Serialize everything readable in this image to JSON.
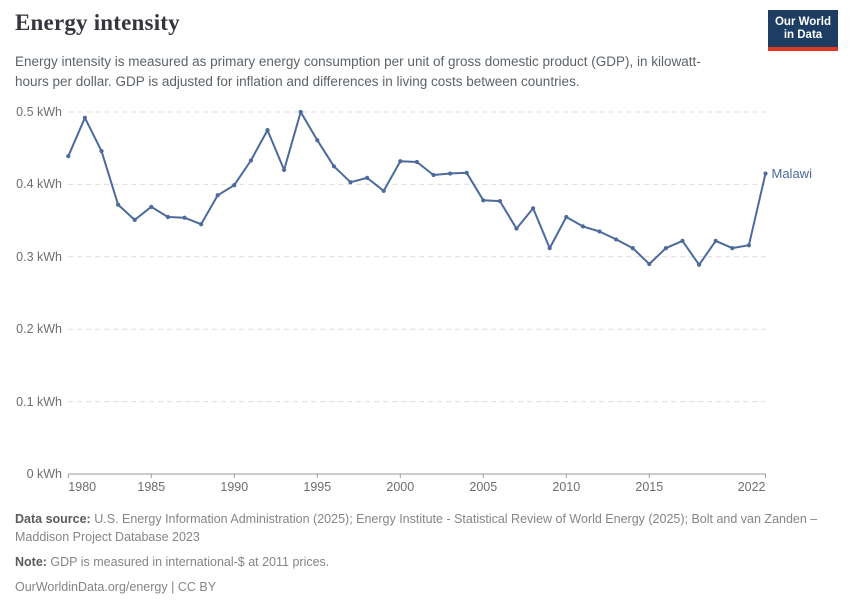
{
  "header": {
    "title": "Energy intensity",
    "subtitle": "Energy intensity is measured as primary energy consumption per unit of gross domestic product (GDP), in kilowatt-hours per dollar. GDP is adjusted for inflation and differences in living costs between countries."
  },
  "logo": {
    "line1": "Our World",
    "line2": "in Data",
    "bg_color": "#1d3d63",
    "accent_color": "#dc3822"
  },
  "chart_data": {
    "type": "line",
    "title": "Energy intensity",
    "unit": "kWh per dollar",
    "xlim": [
      1980,
      2022
    ],
    "ylim": [
      0,
      0.5
    ],
    "grid": "horizontal dashed",
    "legend_position": "end-of-line label",
    "x_ticks": [
      1980,
      1985,
      1990,
      1995,
      2000,
      2005,
      2010,
      2015,
      2022
    ],
    "y_ticks": [
      0,
      0.1,
      0.2,
      0.3,
      0.4,
      0.5
    ],
    "y_tick_labels": [
      "0 kWh",
      "0.1 kWh",
      "0.2 kWh",
      "0.3 kWh",
      "0.4 kWh",
      "0.5 kWh"
    ],
    "series": [
      {
        "name": "Malawi",
        "color": "#4c6a9c",
        "x": [
          1980,
          1981,
          1982,
          1983,
          1984,
          1985,
          1986,
          1987,
          1988,
          1989,
          1990,
          1991,
          1992,
          1993,
          1994,
          1995,
          1996,
          1997,
          1998,
          1999,
          2000,
          2001,
          2002,
          2003,
          2004,
          2005,
          2006,
          2007,
          2008,
          2009,
          2010,
          2011,
          2012,
          2013,
          2014,
          2015,
          2016,
          2017,
          2018,
          2019,
          2020,
          2021,
          2022
        ],
        "values": [
          0.439,
          0.492,
          0.446,
          0.372,
          0.351,
          0.369,
          0.355,
          0.354,
          0.345,
          0.385,
          0.399,
          0.433,
          0.475,
          0.42,
          0.5,
          0.461,
          0.425,
          0.403,
          0.409,
          0.391,
          0.432,
          0.431,
          0.413,
          0.415,
          0.416,
          0.378,
          0.377,
          0.339,
          0.367,
          0.312,
          0.355,
          0.342,
          0.335,
          0.324,
          0.312,
          0.29,
          0.312,
          0.322,
          0.289,
          0.322,
          0.312,
          0.316,
          0.415
        ]
      }
    ],
    "end_label": "Malawi"
  },
  "footer": {
    "datasource_label": "Data source:",
    "datasource_text": " U.S. Energy Information Administration (2025); Energy Institute - Statistical Review of World Energy (2025); Bolt and van Zanden – Maddison Project Database 2023",
    "note_label": "Note:",
    "note_text": " GDP is measured in international-$ at 2011 prices.",
    "link": "OurWorldinData.org/energy",
    "separator": " | ",
    "license": "CC BY"
  },
  "colors": {
    "line": "#4c6a9c",
    "grid": "#dcdcdc",
    "axis": "#9a9a9a",
    "tick_text": "#6e6e6e",
    "title_text": "#35353f",
    "subtitle_text": "#5b6369"
  }
}
